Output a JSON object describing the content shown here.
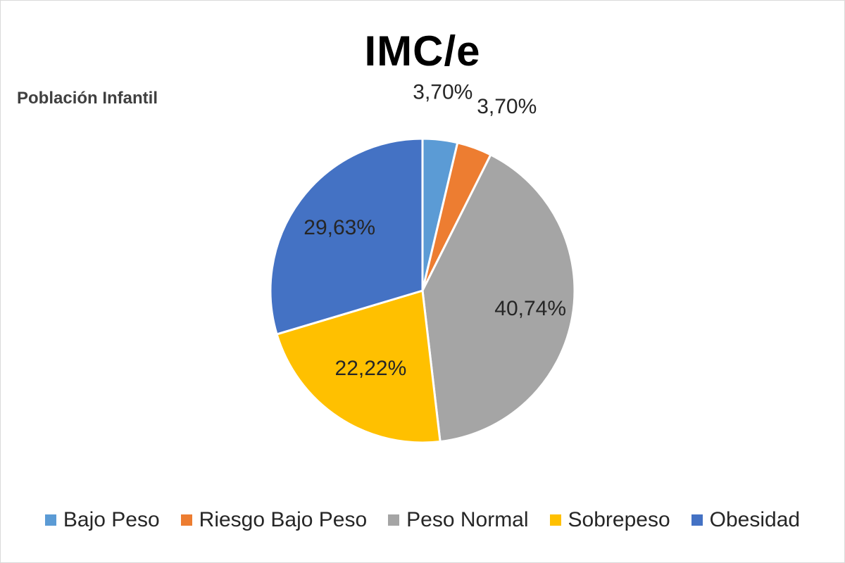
{
  "chart_data": {
    "type": "pie",
    "title": "IMC/e",
    "subtitle": "Población Infantil",
    "categories": [
      "Bajo Peso",
      "Riesgo Bajo Peso",
      "Peso Normal",
      "Sobrepeso",
      "Obesidad"
    ],
    "values": [
      3.7,
      3.7,
      40.74,
      22.22,
      29.63
    ],
    "data_labels": [
      "3,70%",
      "3,70%",
      "40,74%",
      "22,22%",
      "29,63%"
    ],
    "colors": [
      "#5b9bd5",
      "#ed7d31",
      "#a5a5a5",
      "#ffc000",
      "#4472c4"
    ],
    "legend_position": "bottom"
  }
}
